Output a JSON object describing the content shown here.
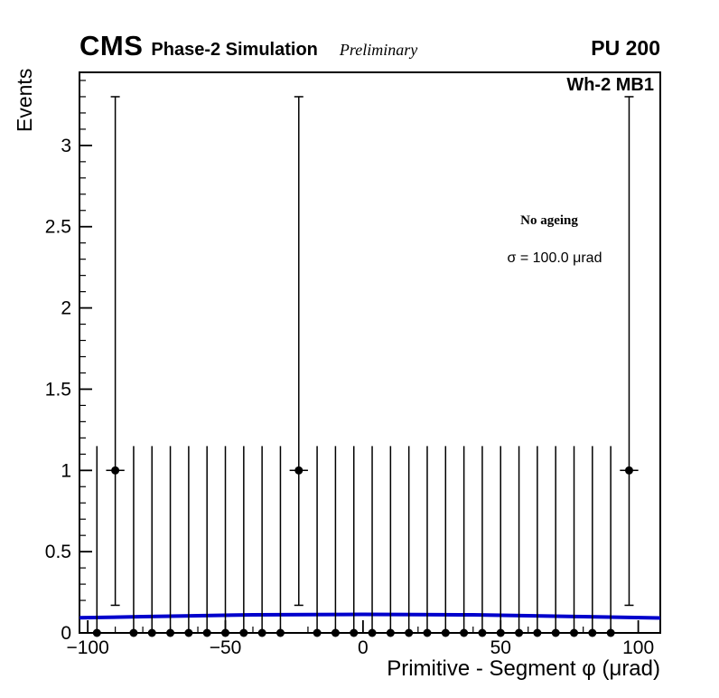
{
  "header": {
    "experiment": "CMS",
    "phase_label": "Phase-2 Simulation",
    "preliminary": "Preliminary",
    "pu_label": "PU 200"
  },
  "plot": {
    "region_label": "Wh-2 MB1",
    "annotations": [
      {
        "text": "No ageing"
      },
      {
        "text": "σ = 100.0 μrad"
      }
    ]
  },
  "chart_data": {
    "type": "scatter",
    "title": "",
    "xlabel": "Primitive - Segment φ (μrad)",
    "ylabel": "Events",
    "xlim": [
      -103,
      108
    ],
    "ylim": [
      0,
      3.45
    ],
    "x_ticks": [
      -100,
      -50,
      0,
      50,
      100
    ],
    "x_tick_labels": [
      "−100",
      "−50",
      "0",
      "50",
      "100"
    ],
    "x_minor_step": 10,
    "y_ticks": [
      0,
      0.5,
      1,
      1.5,
      2,
      2.5,
      3
    ],
    "y_tick_labels": [
      "0",
      "0.5",
      "1",
      "1.5",
      "2",
      "2.5",
      "3"
    ],
    "y_minor_step": 0.1,
    "grid": false,
    "legend": "none",
    "bin_width": 6.667,
    "bin_centers": [
      -96.67,
      -90,
      -83.33,
      -76.67,
      -70,
      -63.33,
      -56.67,
      -50,
      -43.33,
      -36.67,
      -30,
      -23.33,
      -16.67,
      -10,
      -3.33,
      3.33,
      10,
      16.67,
      23.33,
      30,
      36.67,
      43.33,
      50,
      56.67,
      63.33,
      70,
      76.67,
      83.33,
      90,
      96.67
    ],
    "values": [
      0,
      1,
      0,
      0,
      0,
      0,
      0,
      0,
      0,
      0,
      0,
      1,
      0,
      0,
      0,
      0,
      0,
      0,
      0,
      0,
      0,
      0,
      0,
      0,
      0,
      0,
      0,
      0,
      0,
      1
    ],
    "err_up": [
      1.15,
      2.3,
      1.15,
      1.15,
      1.15,
      1.15,
      1.15,
      1.15,
      1.15,
      1.15,
      1.15,
      2.3,
      1.15,
      1.15,
      1.15,
      1.15,
      1.15,
      1.15,
      1.15,
      1.15,
      1.15,
      1.15,
      1.15,
      1.15,
      1.15,
      1.15,
      1.15,
      1.15,
      1.15,
      2.3
    ],
    "err_down": [
      0,
      0.83,
      0,
      0,
      0,
      0,
      0,
      0,
      0,
      0,
      0,
      0.83,
      0,
      0,
      0,
      0,
      0,
      0,
      0,
      0,
      0,
      0,
      0,
      0,
      0,
      0,
      0,
      0,
      0,
      0.83
    ],
    "marker": {
      "shape": "filled-circle",
      "color": "#000000"
    },
    "fit_line": {
      "color": "#0000cc",
      "x": [
        -103,
        -80,
        -60,
        -40,
        -20,
        0,
        20,
        40,
        60,
        80,
        108
      ],
      "y": [
        0.093,
        0.1,
        0.106,
        0.111,
        0.113,
        0.114,
        0.113,
        0.111,
        0.106,
        0.1,
        0.092
      ]
    }
  }
}
